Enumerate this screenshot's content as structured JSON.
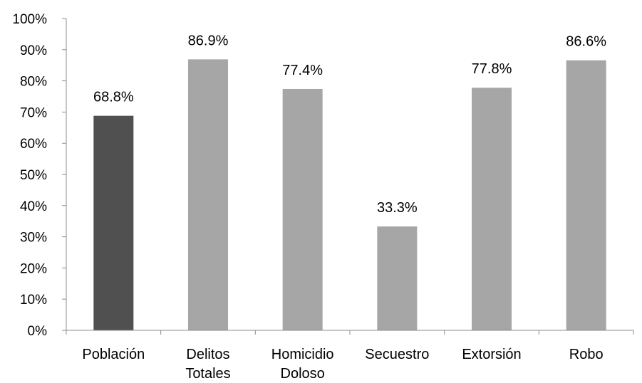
{
  "chart_data": {
    "type": "bar",
    "title": "",
    "xlabel": "",
    "ylabel": "",
    "ylim": [
      0,
      100
    ],
    "y_ticks": [
      "0%",
      "10%",
      "20%",
      "30%",
      "40%",
      "50%",
      "60%",
      "70%",
      "80%",
      "90%",
      "100%"
    ],
    "y_tick_values": [
      0,
      10,
      20,
      30,
      40,
      50,
      60,
      70,
      80,
      90,
      100
    ],
    "categories": [
      [
        "Población"
      ],
      [
        "Delitos",
        "Totales"
      ],
      [
        "Homicidio",
        "Doloso"
      ],
      [
        "Secuestro"
      ],
      [
        "Extorsión"
      ],
      [
        "Robo"
      ]
    ],
    "values": [
      68.8,
      86.9,
      77.4,
      33.3,
      77.8,
      86.6
    ],
    "data_labels": [
      "68.8%",
      "86.9%",
      "77.4%",
      "33.3%",
      "77.8%",
      "86.6%"
    ],
    "bar_colors": [
      "#505050",
      "#a6a6a6",
      "#a6a6a6",
      "#a6a6a6",
      "#a6a6a6",
      "#a6a6a6"
    ],
    "axis_color": "#8c8c8c",
    "grid": false,
    "legend": "none"
  }
}
